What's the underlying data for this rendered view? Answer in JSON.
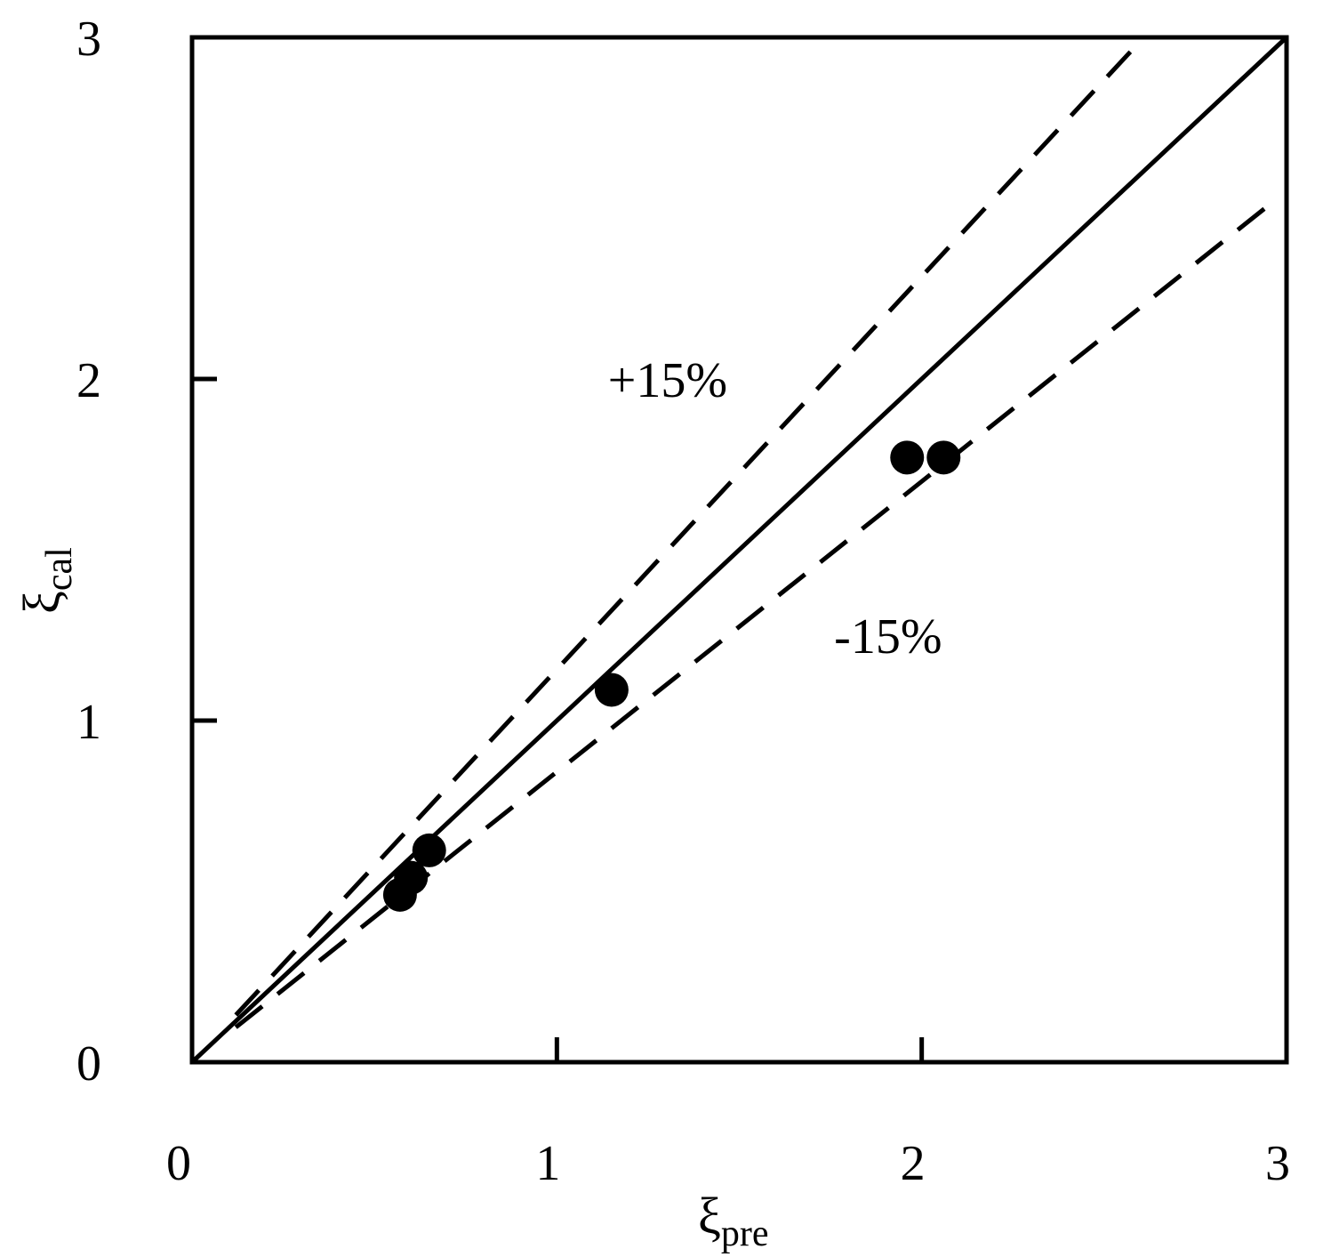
{
  "chart_data": {
    "type": "scatter",
    "xlabel": {
      "symbol": "ξ",
      "subscript": "pre"
    },
    "ylabel": {
      "symbol": "ξ",
      "subscript": "cal"
    },
    "xlim": [
      0,
      3
    ],
    "ylim": [
      0,
      3
    ],
    "xticks": [
      "0",
      "1",
      "2",
      "3"
    ],
    "yticks": [
      "0",
      "1",
      "2",
      "3"
    ],
    "grid": false,
    "legend": "none",
    "reference_lines": [
      {
        "style": "solid",
        "slope": 1.0
      },
      {
        "style": "dashed",
        "slope": 1.15,
        "label": "+15%"
      },
      {
        "style": "dashed",
        "slope": 0.85,
        "label": "-15%"
      }
    ],
    "series": [
      {
        "marker": "filled-circle",
        "color": "#000000",
        "points": [
          {
            "x": 0.57,
            "y": 0.49
          },
          {
            "x": 0.6,
            "y": 0.54
          },
          {
            "x": 0.65,
            "y": 0.62
          },
          {
            "x": 1.15,
            "y": 1.09
          },
          {
            "x": 1.96,
            "y": 1.77
          },
          {
            "x": 2.06,
            "y": 1.77
          }
        ]
      }
    ]
  }
}
